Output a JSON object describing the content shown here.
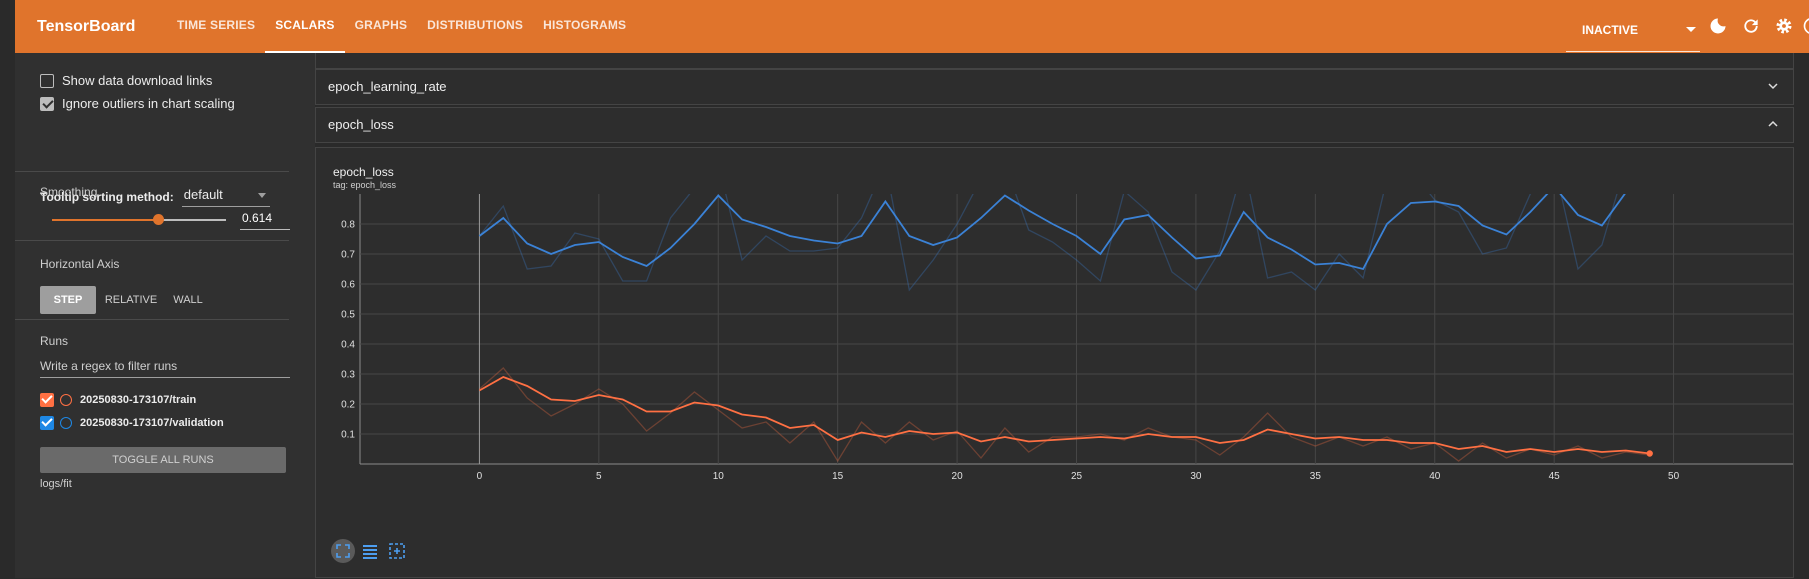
{
  "header": {
    "brand": "TensorBoard",
    "tabs": [
      {
        "label": "TIME SERIES",
        "active": false
      },
      {
        "label": "SCALARS",
        "active": true
      },
      {
        "label": "GRAPHS",
        "active": false
      },
      {
        "label": "DISTRIBUTIONS",
        "active": false
      },
      {
        "label": "HISTOGRAMS",
        "active": false
      }
    ],
    "run_state": "INACTIVE",
    "icons": [
      "dark-mode-icon",
      "reload-icon",
      "settings-icon",
      "help-icon"
    ],
    "accent": "#e0742c"
  },
  "sidebar": {
    "show_download_links": {
      "label": "Show data download links",
      "checked": false
    },
    "ignore_outliers": {
      "label": "Ignore outliers in chart scaling",
      "checked": true
    },
    "tooltip": {
      "label": "Tooltip sorting method:",
      "value": "default"
    },
    "smoothing": {
      "label": "Smoothing",
      "value": "0.614",
      "fraction": 0.614
    },
    "horizontal_axis": {
      "label": "Horizontal Axis",
      "options": [
        {
          "label": "STEP",
          "active": true
        },
        {
          "label": "RELATIVE",
          "active": false
        },
        {
          "label": "WALL",
          "active": false
        }
      ]
    },
    "runs": {
      "label": "Runs",
      "filter_placeholder": "Write a regex to filter runs",
      "items": [
        {
          "name": "20250830-173107/train",
          "color": "#ff7043",
          "checked": true,
          "selected": true
        },
        {
          "name": "20250830-173107/validation",
          "color": "#1e88e5",
          "checked": true,
          "selected": false
        }
      ],
      "toggle_all": "TOGGLE ALL RUNS",
      "logdir": "logs/fit"
    }
  },
  "main": {
    "groups": [
      {
        "name": "epoch_learning_rate",
        "expanded": false
      },
      {
        "name": "epoch_loss",
        "expanded": true
      }
    ],
    "card": {
      "title": "epoch_loss",
      "tag": "tag: epoch_loss",
      "tools": [
        "fit-domain-icon",
        "toggle-log-scale-icon",
        "select-zoom-icon"
      ]
    }
  },
  "chart_data": {
    "type": "line",
    "title": "epoch_loss",
    "xlim": [
      -5,
      55
    ],
    "ylim": [
      0,
      0.9
    ],
    "x_ticks": [
      0,
      5,
      10,
      15,
      20,
      25,
      30,
      35,
      40,
      45,
      50
    ],
    "y_ticks": [
      0.1,
      0.2,
      0.3,
      0.4,
      0.5,
      0.6,
      0.7,
      0.8
    ],
    "grid": true,
    "series": [
      {
        "name": "20250830-173107/validation",
        "color": "#3b82d6",
        "x": [
          0,
          1,
          2,
          3,
          4,
          5,
          6,
          7,
          8,
          9,
          10,
          11,
          12,
          13,
          14,
          15,
          16,
          17,
          18,
          19,
          20,
          21,
          22,
          23,
          24,
          25,
          26,
          27,
          28,
          29,
          30,
          31,
          32,
          33,
          34,
          35,
          36,
          37,
          38,
          39,
          40,
          41,
          42,
          43,
          44,
          45,
          46,
          47,
          48
        ],
        "raw": [
          0.76,
          0.86,
          0.65,
          0.66,
          0.77,
          0.75,
          0.61,
          0.61,
          0.82,
          0.92,
          1.0,
          0.68,
          0.76,
          0.71,
          0.71,
          0.72,
          0.82,
          1.0,
          0.58,
          0.68,
          0.8,
          0.95,
          1.0,
          0.78,
          0.74,
          0.68,
          0.61,
          0.91,
          0.84,
          0.64,
          0.58,
          0.71,
          1.0,
          0.62,
          0.64,
          0.58,
          0.7,
          0.62,
          0.95,
          0.98,
          0.88,
          0.84,
          0.7,
          0.72,
          0.9,
          1.0,
          0.65,
          0.73,
          1.0
        ],
        "smoothed": [
          0.76,
          0.82,
          0.735,
          0.7,
          0.73,
          0.74,
          0.69,
          0.66,
          0.72,
          0.8,
          0.895,
          0.815,
          0.79,
          0.76,
          0.745,
          0.735,
          0.76,
          0.875,
          0.76,
          0.73,
          0.755,
          0.82,
          0.895,
          0.845,
          0.8,
          0.76,
          0.7,
          0.815,
          0.83,
          0.755,
          0.685,
          0.695,
          0.84,
          0.755,
          0.715,
          0.665,
          0.67,
          0.65,
          0.8,
          0.87,
          0.875,
          0.86,
          0.795,
          0.765,
          0.84,
          0.925,
          0.83,
          0.795,
          0.905
        ]
      },
      {
        "name": "20250830-173107/train",
        "color": "#ff7043",
        "x": [
          0,
          1,
          2,
          3,
          4,
          5,
          6,
          7,
          8,
          9,
          10,
          11,
          12,
          13,
          14,
          15,
          16,
          17,
          18,
          19,
          20,
          21,
          22,
          23,
          24,
          25,
          26,
          27,
          28,
          29,
          30,
          31,
          32,
          33,
          34,
          35,
          36,
          37,
          38,
          39,
          40,
          41,
          42,
          43,
          44,
          45,
          46,
          47,
          48,
          49
        ],
        "raw": [
          0.25,
          0.32,
          0.22,
          0.16,
          0.2,
          0.25,
          0.2,
          0.11,
          0.17,
          0.24,
          0.18,
          0.12,
          0.14,
          0.07,
          0.14,
          0.01,
          0.14,
          0.07,
          0.14,
          0.08,
          0.11,
          0.02,
          0.12,
          0.04,
          0.09,
          0.09,
          0.1,
          0.08,
          0.12,
          0.09,
          0.08,
          0.03,
          0.09,
          0.17,
          0.09,
          0.06,
          0.09,
          0.06,
          0.09,
          0.05,
          0.07,
          0.01,
          0.07,
          0.02,
          0.05,
          0.03,
          0.06,
          0.02,
          0.04,
          0.03
        ],
        "smoothed": [
          0.245,
          0.29,
          0.26,
          0.215,
          0.21,
          0.23,
          0.215,
          0.175,
          0.175,
          0.205,
          0.195,
          0.165,
          0.155,
          0.12,
          0.13,
          0.08,
          0.105,
          0.09,
          0.11,
          0.1,
          0.105,
          0.075,
          0.09,
          0.075,
          0.08,
          0.085,
          0.09,
          0.085,
          0.1,
          0.09,
          0.09,
          0.07,
          0.08,
          0.115,
          0.1,
          0.085,
          0.09,
          0.08,
          0.08,
          0.07,
          0.07,
          0.05,
          0.06,
          0.04,
          0.05,
          0.04,
          0.05,
          0.04,
          0.045,
          0.035
        ]
      }
    ]
  }
}
